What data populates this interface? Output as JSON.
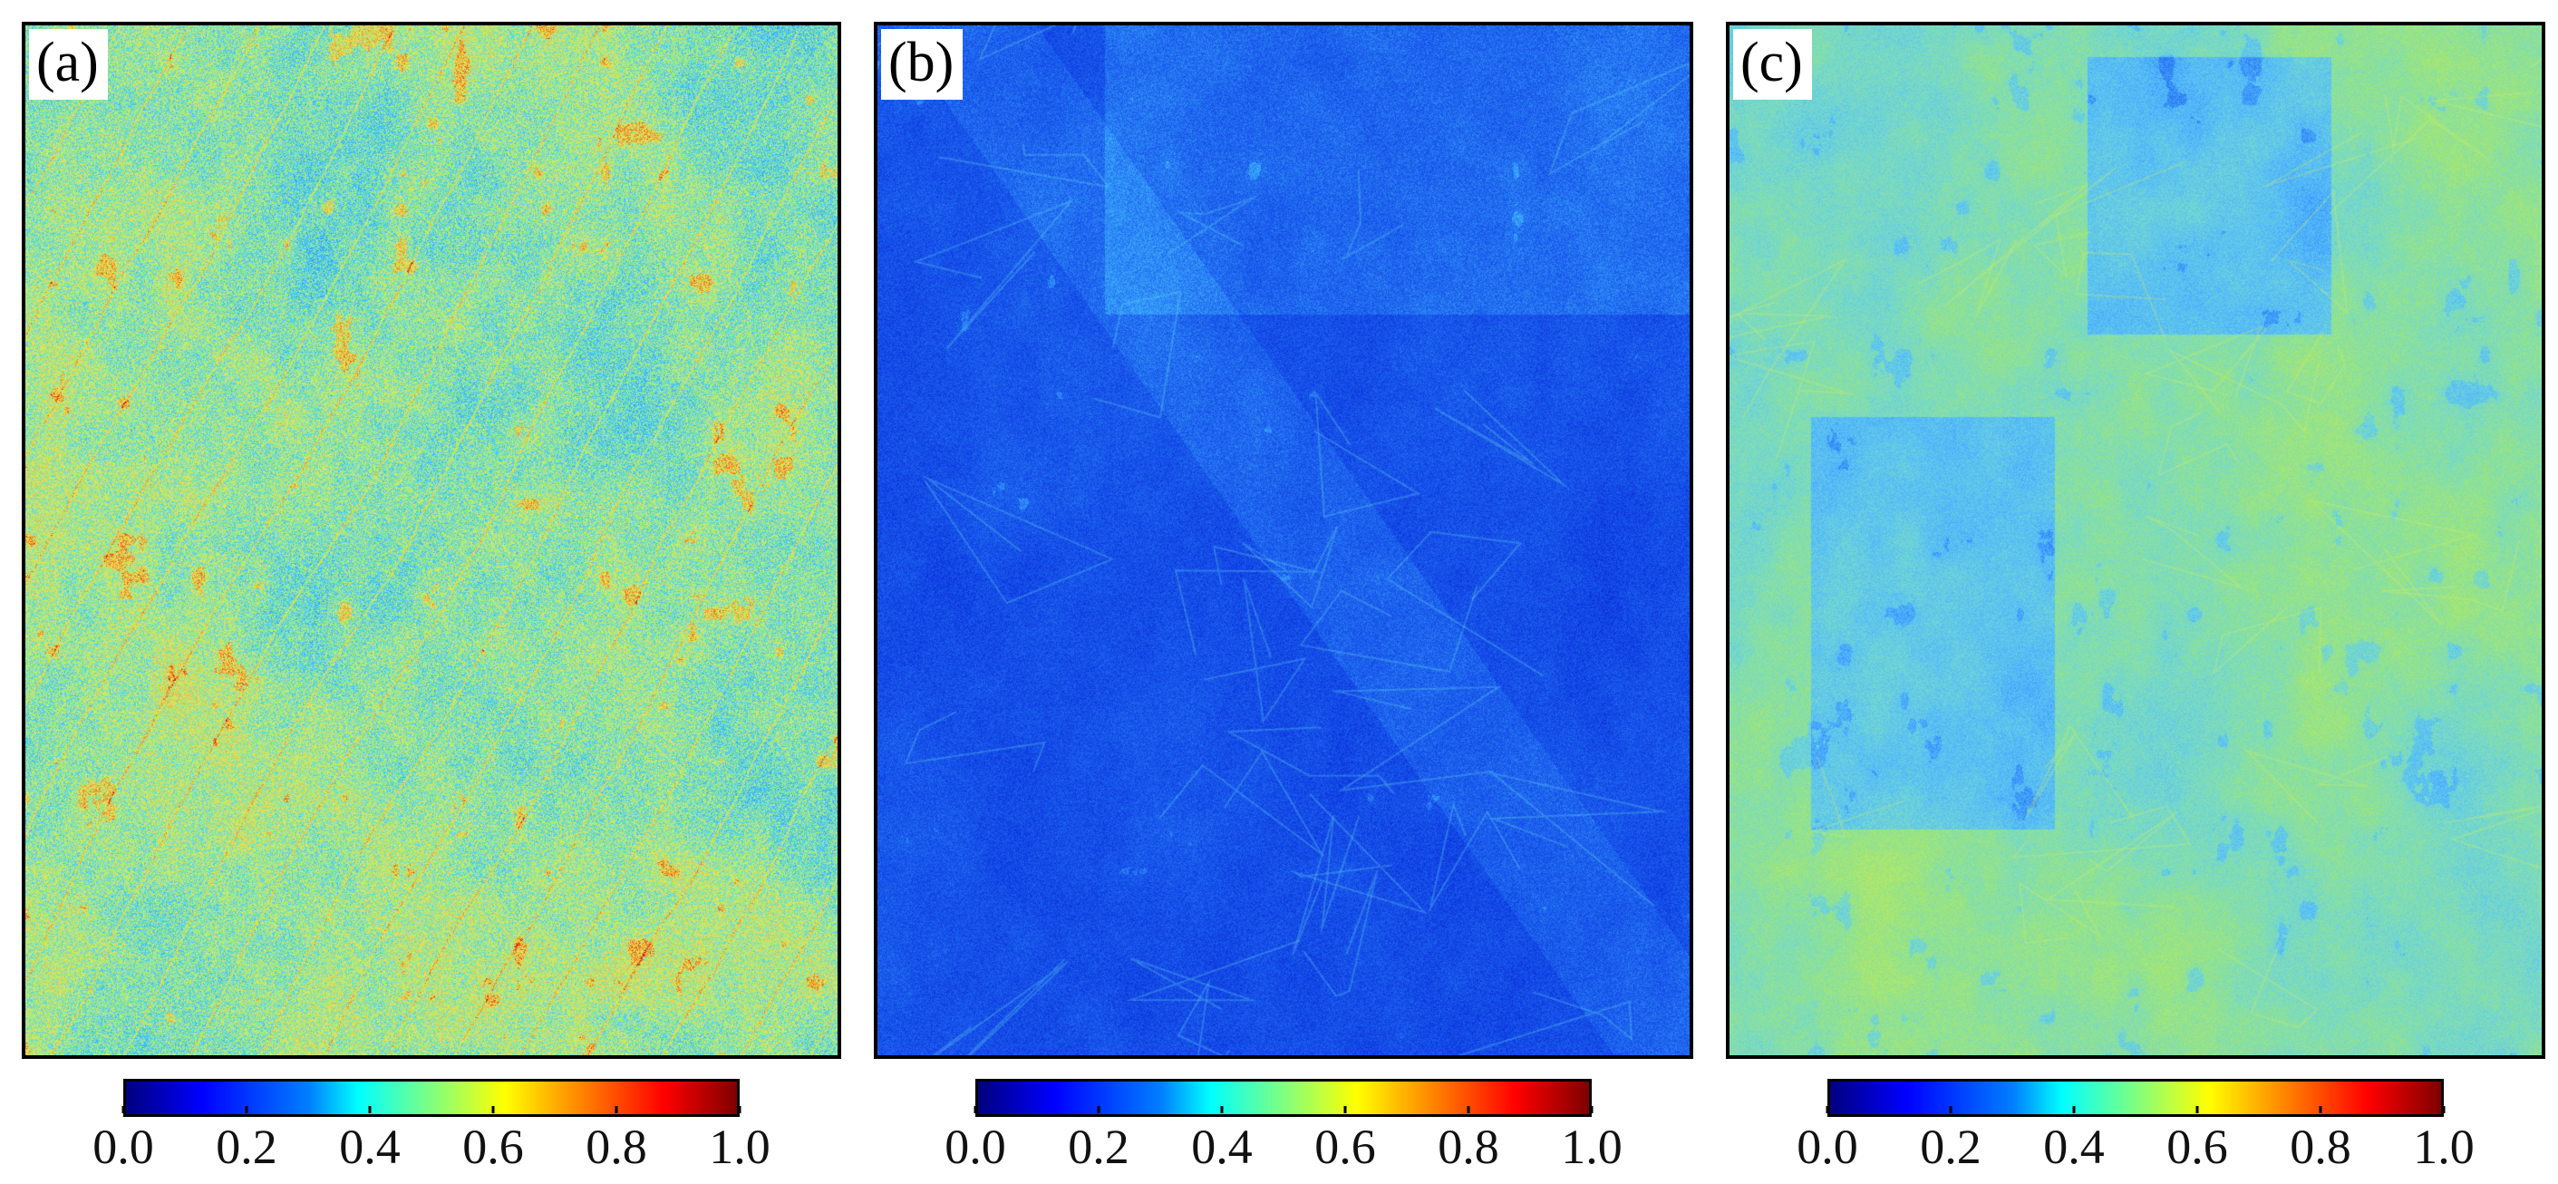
{
  "figure": {
    "panels": [
      {
        "label": "(a)",
        "scene": "field map with mixed mid-range values and scattered high-value patches",
        "palette_hint": [
          "#1f67e6",
          "#30a7ff",
          "#56d7ef",
          "#a6ef7a",
          "#f3e24d",
          "#f08a2c",
          "#c81a12"
        ]
      },
      {
        "label": "(b)",
        "scene": "predominantly low-value field map with lighter bands",
        "palette_hint": [
          "#0a2bd8",
          "#1248e6",
          "#1d63ee",
          "#2f8cf6",
          "#3fb5ff",
          "#6be6e6",
          "#ffd650"
        ]
      },
      {
        "label": "(c)",
        "scene": "higher mid-range field map with green-yellow regions and blue patches",
        "palette_hint": [
          "#1444e3",
          "#2c7cf1",
          "#4fb5ff",
          "#71d7d4",
          "#9ce57a",
          "#d1ea51",
          "#f0bf3b"
        ]
      }
    ],
    "colorbar": {
      "ticks": [
        "0.0",
        "0.2",
        "0.4",
        "0.6",
        "0.8",
        "1.0"
      ],
      "colors": [
        "#00007f",
        "#0000ff",
        "#007fff",
        "#00ffff",
        "#7fff7f",
        "#ffff00",
        "#ff7f00",
        "#ff0000",
        "#7f0000"
      ]
    }
  }
}
